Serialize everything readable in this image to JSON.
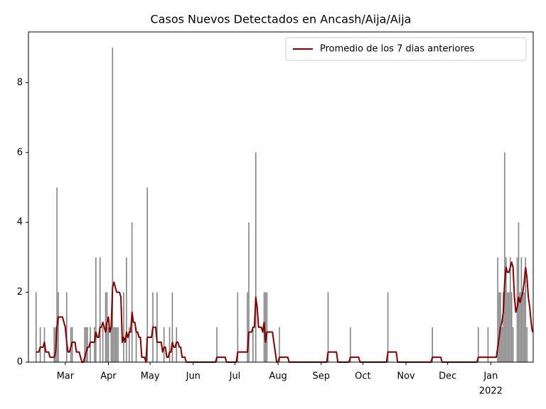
{
  "chart_data": {
    "type": "bar",
    "title": "Casos Nuevos Detectados en Ancash/Aija/Aija",
    "legend": "upper right",
    "ylim": [
      0,
      9.45
    ],
    "yticks": [
      0,
      2,
      4,
      6,
      8
    ],
    "x_year_label": "2022",
    "categories": [
      null,
      null,
      null,
      null,
      null,
      null,
      null,
      null,
      null,
      null,
      null,
      null,
      null,
      null,
      null,
      null,
      null,
      null,
      null,
      null,
      null,
      null,
      null,
      null,
      null,
      null,
      "Mar",
      null,
      null,
      null,
      null,
      null,
      null,
      null,
      null,
      null,
      null,
      null,
      null,
      null,
      null,
      null,
      null,
      null,
      null,
      null,
      null,
      null,
      null,
      null,
      null,
      null,
      null,
      null,
      null,
      null,
      null,
      "Apr",
      null,
      null,
      null,
      null,
      null,
      null,
      null,
      null,
      null,
      null,
      null,
      null,
      null,
      null,
      null,
      null,
      null,
      null,
      null,
      null,
      null,
      null,
      null,
      null,
      null,
      null,
      null,
      null,
      null,
      "May",
      null,
      null,
      null,
      null,
      null,
      null,
      null,
      null,
      null,
      null,
      null,
      null,
      null,
      null,
      null,
      null,
      null,
      null,
      null,
      null,
      null,
      null,
      null,
      null,
      null,
      null,
      null,
      null,
      null,
      null,
      "Jun",
      null,
      null,
      null,
      null,
      null,
      null,
      null,
      null,
      null,
      null,
      null,
      null,
      null,
      null,
      null,
      null,
      null,
      null,
      null,
      null,
      null,
      null,
      null,
      null,
      null,
      null,
      null,
      null,
      null,
      "Jul",
      null,
      null,
      null,
      null,
      null,
      null,
      null,
      null,
      null,
      null,
      null,
      null,
      null,
      null,
      null,
      null,
      null,
      null,
      null,
      null,
      null,
      null,
      null,
      null,
      null,
      null,
      null,
      null,
      null,
      null,
      "Aug",
      null,
      null,
      null,
      null,
      null,
      null,
      null,
      null,
      null,
      null,
      null,
      null,
      null,
      null,
      null,
      null,
      null,
      null,
      null,
      null,
      null,
      null,
      null,
      null,
      null,
      null,
      null,
      null,
      null,
      null,
      "Sep",
      null,
      null,
      null,
      null,
      null,
      null,
      null,
      null,
      null,
      null,
      null,
      null,
      null,
      null,
      null,
      null,
      null,
      null,
      null,
      null,
      null,
      null,
      null,
      null,
      null,
      null,
      null,
      null,
      null,
      "Oct",
      null,
      null,
      null,
      null,
      null,
      null,
      null,
      null,
      null,
      null,
      null,
      null,
      null,
      null,
      null,
      null,
      null,
      null,
      null,
      null,
      null,
      null,
      null,
      null,
      null,
      null,
      null,
      null,
      null,
      null,
      "Nov",
      null,
      null,
      null,
      null,
      null,
      null,
      null,
      null,
      null,
      null,
      null,
      null,
      null,
      null,
      null,
      null,
      null,
      null,
      null,
      null,
      null,
      null,
      null,
      null,
      null,
      null,
      null,
      null,
      null,
      "Dec",
      null,
      null,
      null,
      null,
      null,
      null,
      null,
      null,
      null,
      null,
      null,
      null,
      null,
      null,
      null,
      null,
      null,
      null,
      null,
      null,
      null,
      null,
      null,
      null,
      null,
      null,
      null,
      null,
      null,
      null,
      "Jan",
      null,
      null,
      null,
      null,
      null,
      null,
      null,
      null,
      null,
      null,
      null,
      null,
      null,
      null,
      null,
      null,
      null,
      null,
      null,
      null,
      null,
      null,
      null,
      null,
      null,
      null,
      null,
      null,
      null,
      null
    ],
    "series": [
      {
        "type": "bar",
        "color": "#808080",
        "values": [
          0,
          0,
          0,
          0,
          0,
          2,
          0,
          0,
          1,
          0,
          0,
          1,
          0,
          0,
          0,
          0,
          0,
          0,
          1,
          1,
          5,
          2,
          0,
          0,
          0,
          0,
          0,
          2,
          0,
          0,
          1,
          1,
          0,
          0,
          0,
          0,
          0,
          0,
          0,
          0,
          1,
          1,
          1,
          0,
          1,
          0,
          0,
          1,
          3,
          0,
          0,
          3,
          0,
          1,
          0,
          2,
          2,
          1,
          0,
          1,
          9,
          1,
          1,
          1,
          1,
          0,
          0,
          0,
          2,
          0,
          3,
          0,
          1,
          0,
          4,
          0,
          0,
          1,
          0,
          0,
          0,
          0,
          0,
          0,
          0,
          5,
          0,
          0,
          0,
          2,
          0,
          0,
          2,
          0,
          0,
          0,
          0,
          1,
          0,
          0,
          0,
          1,
          0,
          2,
          0,
          0,
          1,
          0,
          0,
          0,
          0,
          0,
          0,
          0,
          0,
          0,
          0,
          0,
          0,
          0,
          0,
          0,
          0,
          0,
          0,
          0,
          0,
          0,
          0,
          0,
          0,
          0,
          0,
          0,
          0,
          1,
          0,
          0,
          0,
          0,
          0,
          0,
          0,
          0,
          0,
          0,
          0,
          0,
          0,
          0,
          2,
          0,
          0,
          0,
          0,
          0,
          0,
          2,
          4,
          0,
          0,
          1,
          0,
          6,
          0,
          0,
          0,
          0,
          0,
          2,
          2,
          2,
          0,
          0,
          0,
          0,
          0,
          0,
          0,
          0,
          1,
          0,
          0,
          0,
          0,
          0,
          0,
          0,
          0,
          0,
          0,
          0,
          0,
          0,
          0,
          0,
          0,
          0,
          0,
          0,
          0,
          0,
          0,
          0,
          0,
          0,
          0,
          0,
          0,
          0,
          0,
          0,
          0,
          0,
          0,
          2,
          0,
          0,
          0,
          0,
          0,
          0,
          0,
          0,
          0,
          0,
          0,
          0,
          0,
          0,
          0,
          1,
          0,
          0,
          0,
          0,
          0,
          0,
          0,
          0,
          0,
          0,
          0,
          0,
          0,
          0,
          0,
          0,
          0,
          0,
          0,
          0,
          0,
          0,
          0,
          0,
          0,
          0,
          2,
          0,
          0,
          0,
          0,
          0,
          0,
          0,
          0,
          0,
          0,
          0,
          0,
          0,
          0,
          0,
          0,
          0,
          0,
          0,
          0,
          0,
          0,
          0,
          0,
          0,
          0,
          0,
          0,
          0,
          0,
          0,
          1,
          0,
          0,
          0,
          0,
          0,
          0,
          0,
          0,
          0,
          0,
          0,
          0,
          0,
          0,
          0,
          0,
          0,
          0,
          0,
          0,
          0,
          0,
          0,
          0,
          0,
          0,
          0,
          0,
          0,
          0,
          0,
          0,
          1,
          0,
          0,
          0,
          0,
          0,
          0,
          1,
          0,
          0,
          0,
          0,
          0,
          0,
          3,
          2,
          2,
          1,
          2,
          6,
          3,
          2,
          2,
          3,
          2,
          1,
          0,
          0,
          3,
          4,
          2,
          3,
          2,
          2,
          3,
          1,
          0,
          0,
          0,
          0
        ]
      },
      {
        "type": "line",
        "name": "Promedio de los 7 dias anteriores",
        "color": "#800000",
        "values": [
          null,
          null,
          null,
          null,
          null,
          0.29,
          0.29,
          0.29,
          0.43,
          0.43,
          0.43,
          0.57,
          0.29,
          0.29,
          0.29,
          0.14,
          0.14,
          0.14,
          0.14,
          0.29,
          1,
          1.29,
          1.29,
          1.29,
          1.29,
          1.14,
          1,
          0.57,
          0.29,
          0.29,
          0.43,
          0.57,
          0.57,
          0.57,
          0.29,
          0.29,
          0.29,
          0.14,
          0,
          0,
          0.14,
          0.29,
          0.43,
          0.43,
          0.57,
          0.57,
          0.57,
          0.57,
          0.86,
          0.71,
          0.71,
          1,
          1,
          1.14,
          1,
          0.86,
          1.14,
          1.29,
          0.86,
          1,
          2.14,
          2.29,
          2.14,
          2,
          2,
          2,
          1.86,
          0.57,
          0.71,
          0.57,
          0.86,
          0.71,
          0.86,
          0.86,
          1.43,
          1.14,
          1.14,
          0.86,
          0.86,
          0.71,
          0.71,
          0.14,
          0.14,
          0.14,
          0,
          0.71,
          0.71,
          0.71,
          0.71,
          1,
          1,
          1,
          0.57,
          0.57,
          0.57,
          0.57,
          0.29,
          0.43,
          0.43,
          0.14,
          0.14,
          0.29,
          0.29,
          0.57,
          0.43,
          0.43,
          0.57,
          0.57,
          0.43,
          0.43,
          0.14,
          0.14,
          0.14,
          0,
          0,
          0,
          0,
          0,
          0,
          0,
          0,
          0,
          0,
          0,
          0,
          0,
          0,
          0,
          0,
          0,
          0,
          0,
          0,
          0,
          0,
          0.14,
          0.14,
          0.14,
          0.14,
          0.14,
          0.14,
          0.14,
          0,
          0,
          0,
          0,
          0,
          0,
          0,
          0,
          0.29,
          0.29,
          0.29,
          0.29,
          0.29,
          0.29,
          0.29,
          0.29,
          0.86,
          0.86,
          0.86,
          1,
          1,
          1.86,
          1.57,
          1,
          1,
          1,
          0.86,
          1.14,
          0.57,
          0.86,
          0.86,
          0.86,
          0.86,
          0.86,
          0.57,
          0.29,
          0,
          0,
          0.14,
          0.14,
          0.14,
          0.14,
          0.14,
          0.14,
          0.14,
          0,
          0,
          0,
          0,
          0,
          0,
          0,
          0,
          0,
          0,
          0,
          0,
          0,
          0,
          0,
          0,
          0,
          0,
          0,
          0,
          0,
          0,
          0,
          0,
          0,
          0,
          0,
          0,
          0.29,
          0.29,
          0.29,
          0.29,
          0.29,
          0.29,
          0.29,
          0,
          0,
          0,
          0,
          0,
          0,
          0,
          0,
          0,
          0.14,
          0.14,
          0.14,
          0.14,
          0.14,
          0.14,
          0.14,
          0,
          0,
          0,
          0,
          0,
          0,
          0,
          0,
          0,
          0,
          0,
          0,
          0,
          0,
          0,
          0,
          0,
          0,
          0,
          0,
          0.29,
          0.29,
          0.29,
          0.29,
          0.29,
          0.29,
          0.29,
          0,
          0,
          0,
          0,
          0,
          0,
          0,
          0,
          0,
          0,
          0,
          0,
          0,
          0,
          0,
          0,
          0,
          0,
          0,
          0,
          0,
          0,
          0,
          0,
          0,
          0.14,
          0.14,
          0.14,
          0.14,
          0.14,
          0.14,
          0.14,
          0,
          0,
          0,
          0,
          0,
          0,
          0,
          0,
          0,
          0,
          0,
          0,
          0,
          0,
          0,
          0,
          0,
          0,
          0,
          0,
          0,
          0,
          0,
          0,
          0,
          0,
          0.14,
          0.14,
          0.14,
          0.14,
          0.14,
          0.14,
          0.14,
          0.14,
          0.14,
          0.14,
          0.14,
          0.14,
          0.14,
          0.14,
          0.43,
          0.71,
          1,
          1.14,
          1.43,
          2.29,
          2.71,
          2.57,
          2.57,
          2.71,
          2.86,
          2.71,
          1.86,
          1.43,
          1.57,
          1.86,
          1.71,
          1.86,
          2,
          2.29,
          2.71,
          2.43,
          1.86,
          1.57,
          1.14,
          0.86
        ]
      }
    ]
  }
}
